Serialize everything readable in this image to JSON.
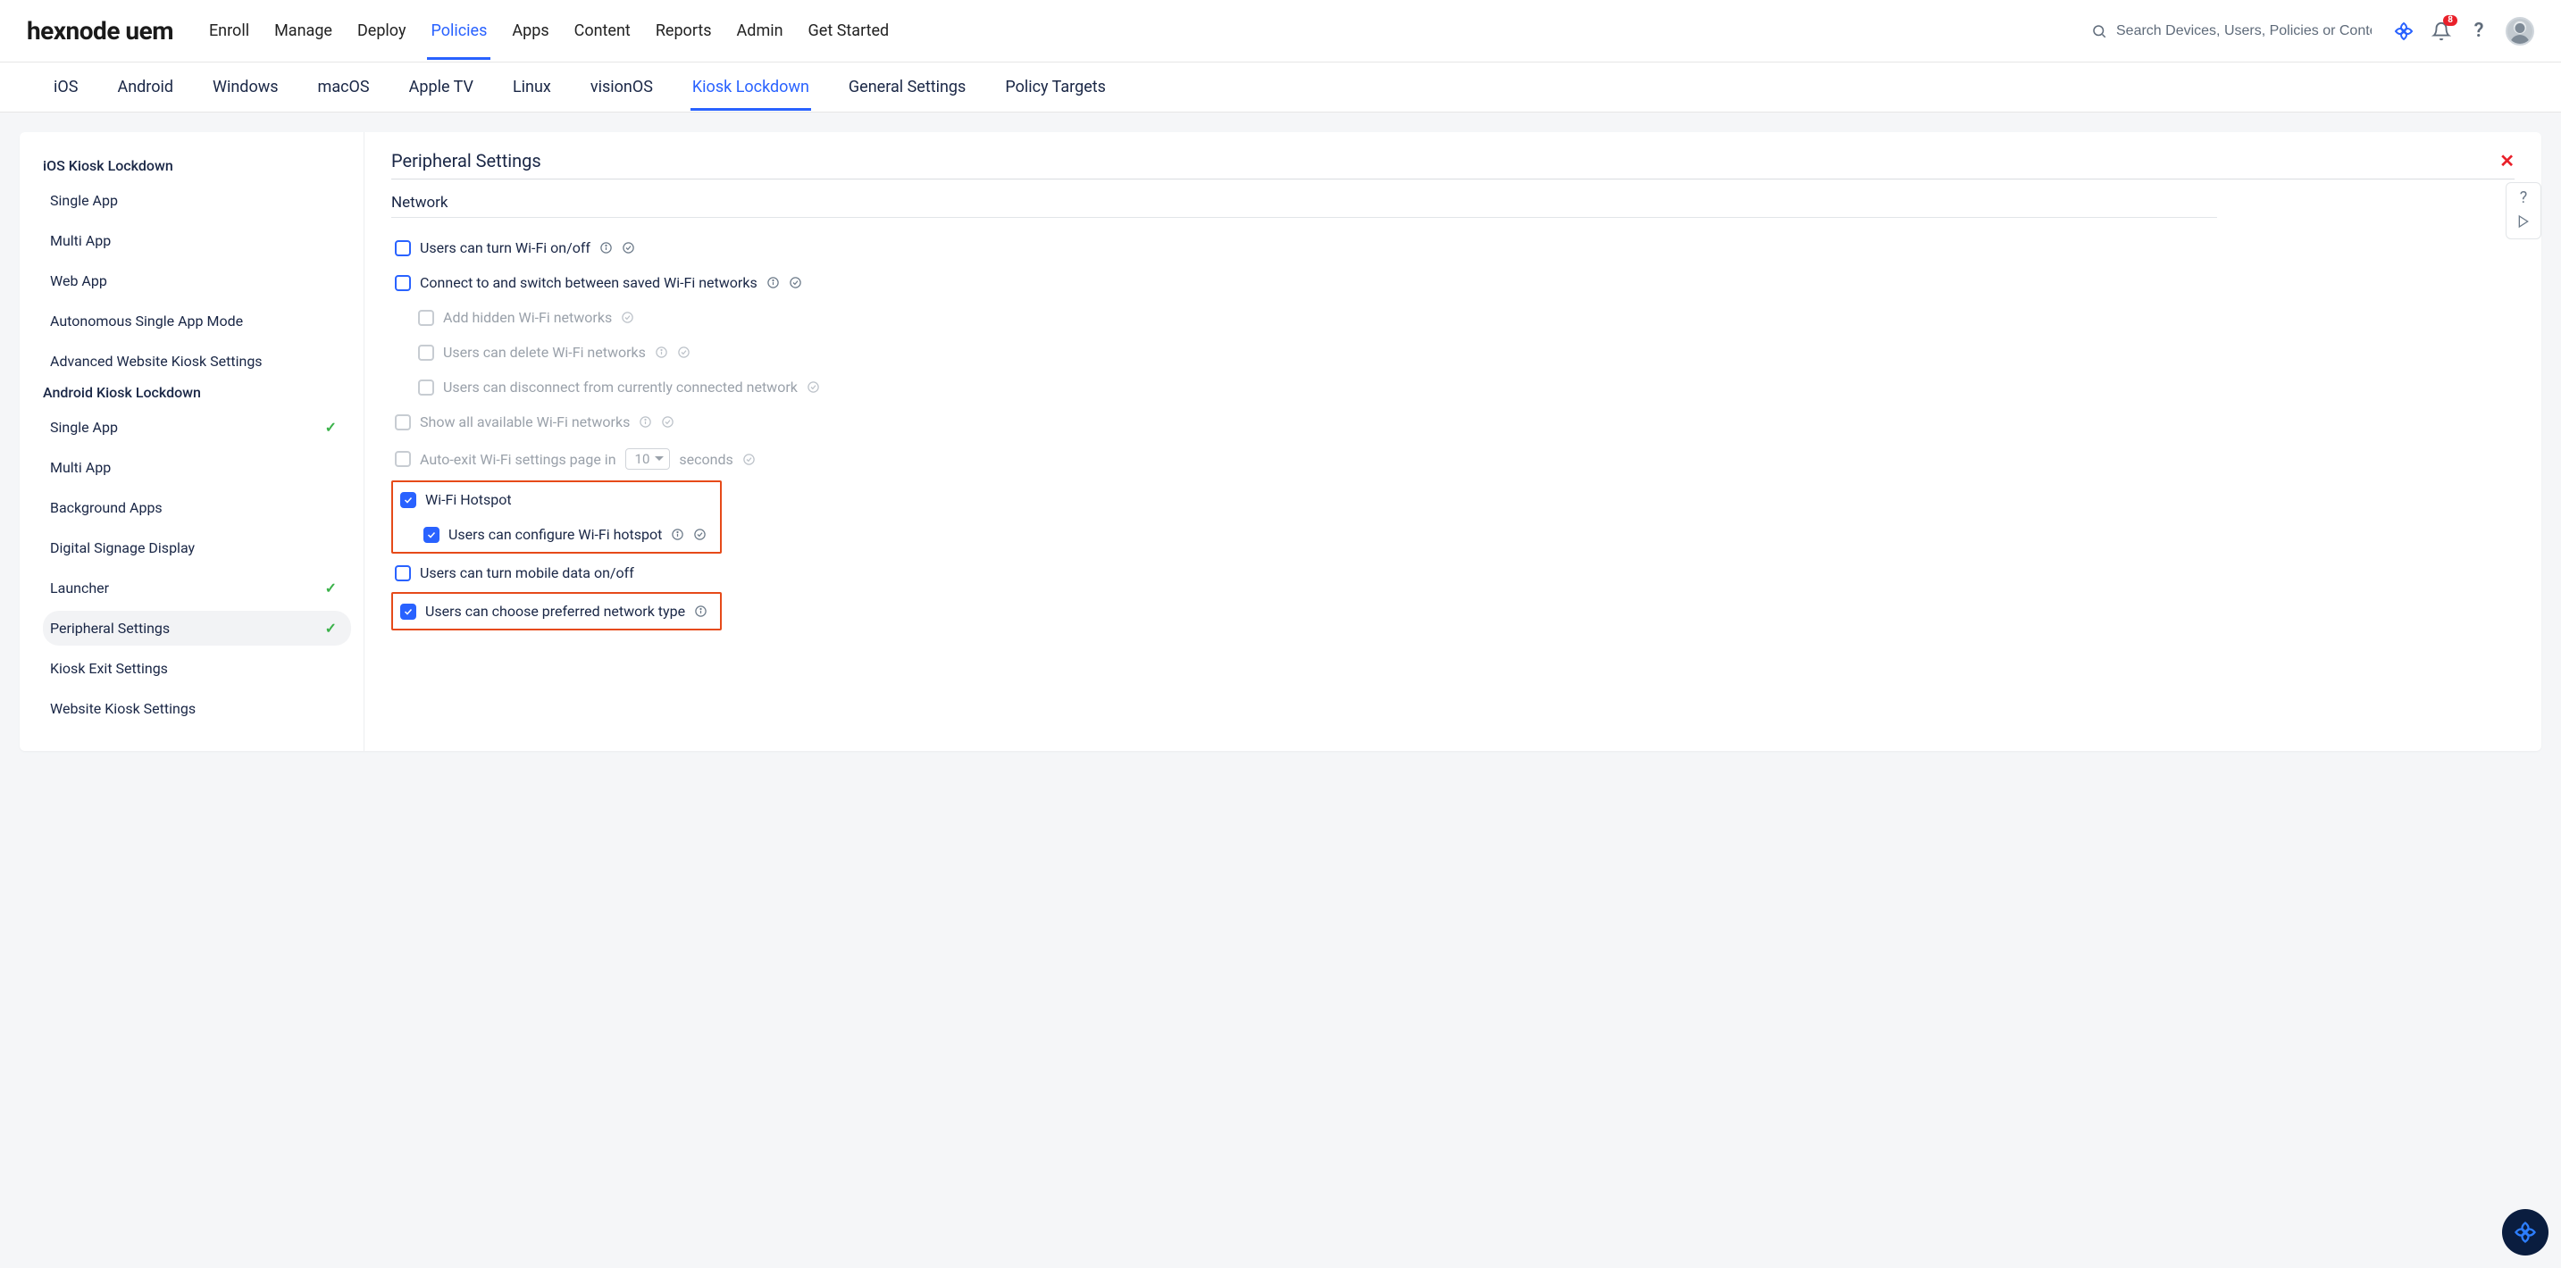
{
  "logo": "hexnode uem",
  "topnav": {
    "items": [
      "Enroll",
      "Manage",
      "Deploy",
      "Policies",
      "Apps",
      "Content",
      "Reports",
      "Admin",
      "Get Started"
    ],
    "activeIndex": 3
  },
  "search": {
    "placeholder": "Search Devices, Users, Policies or Content"
  },
  "notifications": {
    "count": "8"
  },
  "subtabs": {
    "items": [
      "iOS",
      "Android",
      "Windows",
      "macOS",
      "Apple TV",
      "Linux",
      "visionOS",
      "Kiosk Lockdown",
      "General Settings",
      "Policy Targets"
    ],
    "activeIndex": 7
  },
  "sidebar": {
    "groups": [
      {
        "title": "iOS Kiosk Lockdown",
        "items": [
          {
            "label": "Single App",
            "checked": false
          },
          {
            "label": "Multi App",
            "checked": false
          },
          {
            "label": "Web App",
            "checked": false
          },
          {
            "label": "Autonomous Single App Mode",
            "checked": false
          },
          {
            "label": "Advanced Website Kiosk Settings",
            "checked": false
          }
        ]
      },
      {
        "title": "Android Kiosk Lockdown",
        "items": [
          {
            "label": "Single App",
            "checked": true
          },
          {
            "label": "Multi App",
            "checked": false
          },
          {
            "label": "Background Apps",
            "checked": false
          },
          {
            "label": "Digital Signage Display",
            "checked": false
          },
          {
            "label": "Launcher",
            "checked": true
          },
          {
            "label": "Peripheral Settings",
            "checked": true,
            "selected": true
          },
          {
            "label": "Kiosk Exit Settings",
            "checked": false
          },
          {
            "label": "Website Kiosk Settings",
            "checked": false
          }
        ]
      }
    ]
  },
  "panel": {
    "title": "Peripheral Settings",
    "sectionTitle": "Network",
    "options": {
      "wifiToggle": {
        "label": "Users can turn Wi-Fi on/off",
        "checked": false,
        "hasInfo": true,
        "hasBadge": true
      },
      "wifiSwitch": {
        "label": "Connect to and switch between saved Wi-Fi networks",
        "checked": false,
        "hasInfo": true,
        "hasBadge": true
      },
      "addHidden": {
        "label": "Add hidden Wi-Fi networks",
        "checked": false,
        "hasInfo": false,
        "hasBadge": true,
        "muted": true,
        "indent": 1
      },
      "deleteWifi": {
        "label": "Users can delete Wi-Fi networks",
        "checked": false,
        "hasInfo": true,
        "hasBadge": true,
        "muted": true,
        "indent": 1
      },
      "disconnect": {
        "label": "Users can disconnect from currently connected network",
        "checked": false,
        "hasInfo": false,
        "hasBadge": true,
        "muted": true,
        "indent": 1
      },
      "showAll": {
        "label": "Show all available Wi-Fi networks",
        "checked": false,
        "hasInfo": true,
        "hasBadge": true,
        "muted": true
      },
      "autoExit": {
        "prefix": "Auto-exit Wi-Fi settings page in",
        "suffix": "seconds",
        "value": "10",
        "checked": false,
        "hasInfo": false,
        "hasBadge": true,
        "muted": true
      },
      "hotspot": {
        "label": "Wi-Fi Hotspot",
        "checked": true
      },
      "hotspotConfig": {
        "label": "Users can configure Wi-Fi hotspot",
        "checked": true,
        "hasInfo": true,
        "hasBadge": true,
        "indent": 1
      },
      "mobileData": {
        "label": "Users can turn mobile data on/off",
        "checked": false
      },
      "prefNetwork": {
        "label": "Users can choose preferred network type",
        "checked": true,
        "hasInfo": true
      }
    }
  },
  "colors": {
    "accent": "#2962ff",
    "danger": "#e9202a",
    "highlight": "#e64a19",
    "success": "#3bb24a"
  }
}
